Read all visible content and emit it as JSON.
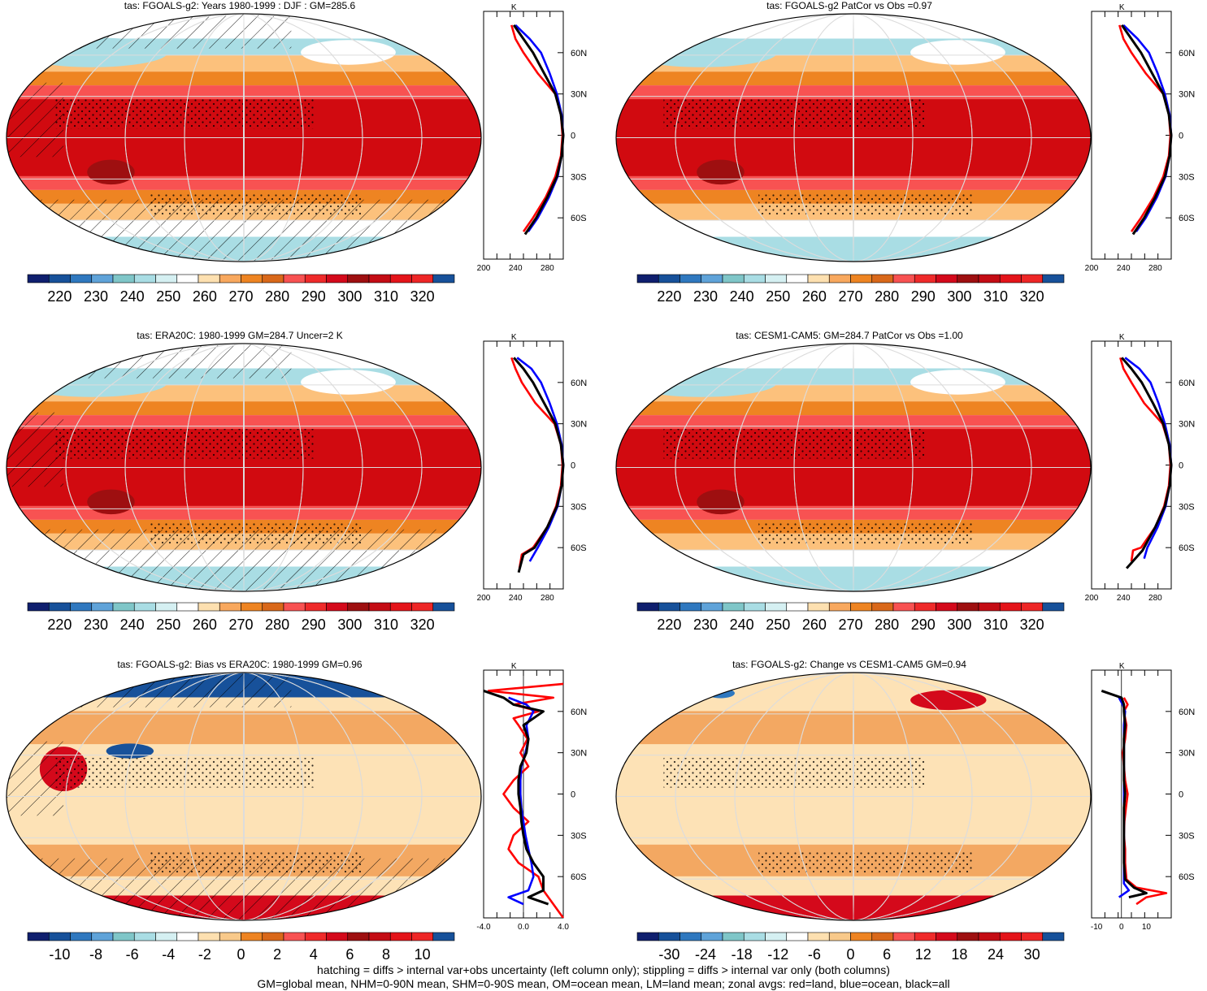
{
  "panels": [
    {
      "id": "fgoals",
      "title": "tas: FGOALS-g2: Years 1980-1999 : DJF : GM=285.6",
      "kind": "abs",
      "hatch": true,
      "scale": "abs"
    },
    {
      "id": "fgoals-patcor",
      "title": "tas: FGOALS-g2 PatCor vs Obs =0.97",
      "kind": "abs",
      "hatch": false,
      "scale": "abs"
    },
    {
      "id": "era20c",
      "title": "tas: ERA20C: 1980-1999 GM=284.7 Uncer=2 K",
      "kind": "abs",
      "hatch": true,
      "scale": "abs"
    },
    {
      "id": "cesm",
      "title": "tas: CESM1-CAM5: GM=284.7 PatCor vs Obs =1.00",
      "kind": "abs",
      "hatch": false,
      "scale": "abs"
    },
    {
      "id": "bias",
      "title": "tas: FGOALS-g2: Bias vs ERA20C: 1980-1999 GM=0.96",
      "kind": "bias",
      "hatch": true,
      "scale": "bias"
    },
    {
      "id": "change",
      "title": "tas: FGOALS-g2: Change vs CESM1-CAM5 GM=0.94",
      "kind": "change",
      "hatch": false,
      "scale": "change"
    }
  ],
  "colorbars": {
    "abs": {
      "labels": [
        "220",
        "230",
        "240",
        "250",
        "260",
        "270",
        "280",
        "290",
        "300",
        "310",
        "320"
      ],
      "colors": [
        "#0f1f6e",
        "#17519a",
        "#2f78bf",
        "#5fa3d9",
        "#7fc6c8",
        "#a9dde4",
        "#d5f0f2",
        "#ffffff",
        "#fde0b0",
        "#f8a85e",
        "#ee8422",
        "#d9681a",
        "#f85252",
        "#ef2a2a",
        "#d4091b",
        "#9e0f10",
        "#c40c14",
        "#e4141a",
        "#ee2626",
        "#17519a"
      ]
    },
    "bias": {
      "labels": [
        "-10",
        "-8",
        "-6",
        "-4",
        "-2",
        "0",
        "2",
        "4",
        "6",
        "8",
        "10"
      ],
      "colors": [
        "#0f1f6e",
        "#17519a",
        "#2f78bf",
        "#5fa3d9",
        "#7fc6c8",
        "#a9dde4",
        "#d5f0f2",
        "#ffffff",
        "#fde0b0",
        "#f8c98a",
        "#ee8422",
        "#d9681a",
        "#f85252",
        "#ef2a2a",
        "#d4091b",
        "#9e0f10",
        "#c40c14",
        "#e4141a",
        "#ee2626",
        "#17519a"
      ]
    },
    "change": {
      "labels": [
        "-30",
        "-24",
        "-18",
        "-12",
        "-6",
        "0",
        "6",
        "12",
        "18",
        "24",
        "30"
      ],
      "colors": [
        "#0f1f6e",
        "#17519a",
        "#2f78bf",
        "#5fa3d9",
        "#7fc6c8",
        "#a9dde4",
        "#d5f0f2",
        "#ffffff",
        "#fde0b0",
        "#f8c98a",
        "#ee8422",
        "#d9681a",
        "#f85252",
        "#ef2a2a",
        "#d4091b",
        "#9e0f10",
        "#c40c14",
        "#e4141a",
        "#ee2626",
        "#17519a"
      ]
    }
  },
  "map_colors": {
    "abs": {
      "trop": "#d10a10",
      "warm": "#ef2121",
      "mid": "#f85252",
      "cool": "#ee8422",
      "cold": "#fcc17c",
      "polar": "#ffffff",
      "ice": "#a9dde4",
      "deep": "#9e0f10"
    },
    "bias": {
      "base": "#fde2b6",
      "warm": "#f3a862",
      "hot": "#d4091b",
      "cold": "#17519a",
      "cool": "#a9dde4"
    },
    "change": {
      "base": "#fde2b6",
      "warm": "#f3a862",
      "hot": "#d4091b",
      "cold": "#2f78bf"
    }
  },
  "zonal_axes": {
    "abs": {
      "xticks": [
        "200",
        "240",
        "280"
      ],
      "xmin": 200,
      "xmax": 300
    },
    "bias": {
      "xticks": [
        "-4.0",
        "0.0",
        "4.0"
      ],
      "xmin": -4,
      "xmax": 4
    },
    "change": {
      "xticks": [
        "-10",
        "0",
        "10"
      ],
      "xmin": -12,
      "xmax": 20
    }
  },
  "zonal_units": "K",
  "lat_ticks": [
    "60N",
    "30N",
    "0",
    "30S",
    "60S"
  ],
  "chart_data": [
    {
      "type": "line",
      "panel": "fgoals",
      "xlabel": "K",
      "ylabel": "",
      "x_range": [
        200,
        300
      ],
      "y_range": [
        -90,
        90
      ],
      "series": [
        {
          "name": "land",
          "color": "#ff0000",
          "lat": [
            -70,
            -60,
            -45,
            -30,
            -15,
            0,
            15,
            30,
            45,
            60,
            70,
            80
          ],
          "values": [
            250,
            262,
            278,
            290,
            297,
            299,
            297,
            290,
            268,
            250,
            240,
            235
          ]
        },
        {
          "name": "ocean",
          "color": "#0000ff",
          "lat": [
            -70,
            -60,
            -45,
            -30,
            -15,
            0,
            15,
            30,
            45,
            60,
            70,
            80
          ],
          "values": [
            256,
            268,
            282,
            293,
            298,
            300,
            298,
            292,
            283,
            272,
            258,
            240
          ]
        },
        {
          "name": "all",
          "color": "#000000",
          "lat": [
            -72,
            -60,
            -45,
            -30,
            -15,
            0,
            15,
            30,
            45,
            60,
            70,
            80
          ],
          "values": [
            252,
            266,
            280,
            292,
            298,
            300,
            297,
            290,
            276,
            262,
            250,
            238
          ]
        }
      ]
    },
    {
      "type": "line",
      "panel": "fgoals-patcor",
      "xlabel": "K",
      "ylabel": "",
      "x_range": [
        200,
        300
      ],
      "y_range": [
        -90,
        90
      ],
      "series": [
        {
          "name": "land",
          "color": "#ff0000",
          "lat": [
            -70,
            -60,
            -45,
            -30,
            -15,
            0,
            15,
            30,
            45,
            60,
            70,
            80
          ],
          "values": [
            250,
            262,
            278,
            290,
            297,
            299,
            297,
            290,
            268,
            250,
            240,
            235
          ]
        },
        {
          "name": "ocean",
          "color": "#0000ff",
          "lat": [
            -70,
            -60,
            -45,
            -30,
            -15,
            0,
            15,
            30,
            45,
            60,
            70,
            80
          ],
          "values": [
            256,
            268,
            282,
            293,
            298,
            300,
            298,
            292,
            283,
            272,
            258,
            240
          ]
        },
        {
          "name": "all",
          "color": "#000000",
          "lat": [
            -72,
            -60,
            -45,
            -30,
            -15,
            0,
            15,
            30,
            45,
            60,
            70,
            80
          ],
          "values": [
            252,
            266,
            280,
            292,
            298,
            300,
            297,
            290,
            276,
            262,
            250,
            238
          ]
        }
      ]
    },
    {
      "type": "line",
      "panel": "era20c",
      "xlabel": "K",
      "ylabel": "",
      "x_range": [
        200,
        300
      ],
      "y_range": [
        -90,
        90
      ],
      "series": [
        {
          "name": "land",
          "color": "#ff0000",
          "lat": [
            -75,
            -65,
            -60,
            -45,
            -30,
            -15,
            0,
            15,
            30,
            45,
            60,
            70,
            78
          ],
          "values": [
            245,
            248,
            262,
            280,
            291,
            297,
            299,
            297,
            289,
            265,
            248,
            240,
            235
          ]
        },
        {
          "name": "ocean",
          "color": "#0000ff",
          "lat": [
            -70,
            -60,
            -45,
            -30,
            -15,
            0,
            15,
            30,
            45,
            60,
            70,
            78
          ],
          "values": [
            258,
            268,
            282,
            293,
            298,
            300,
            298,
            292,
            283,
            272,
            260,
            242
          ]
        },
        {
          "name": "all",
          "color": "#000000",
          "lat": [
            -78,
            -65,
            -60,
            -45,
            -30,
            -15,
            0,
            15,
            30,
            45,
            60,
            70,
            78
          ],
          "values": [
            244,
            250,
            264,
            280,
            292,
            298,
            300,
            297,
            290,
            276,
            262,
            250,
            238
          ]
        }
      ]
    },
    {
      "type": "line",
      "panel": "cesm",
      "xlabel": "K",
      "ylabel": "",
      "x_range": [
        200,
        300
      ],
      "y_range": [
        -90,
        90
      ],
      "series": [
        {
          "name": "land",
          "color": "#ff0000",
          "lat": [
            -70,
            -62,
            -60,
            -45,
            -30,
            -15,
            0,
            15,
            30,
            45,
            60,
            70,
            78
          ],
          "values": [
            250,
            252,
            262,
            280,
            291,
            297,
            299,
            297,
            289,
            266,
            250,
            240,
            236
          ]
        },
        {
          "name": "ocean",
          "color": "#0000ff",
          "lat": [
            -68,
            -60,
            -45,
            -30,
            -15,
            0,
            15,
            30,
            45,
            60,
            70,
            78
          ],
          "values": [
            266,
            270,
            283,
            293,
            298,
            300,
            298,
            292,
            284,
            274,
            260,
            242
          ]
        },
        {
          "name": "all",
          "color": "#000000",
          "lat": [
            -75,
            -62,
            -45,
            -30,
            -15,
            0,
            15,
            30,
            45,
            60,
            70,
            78
          ],
          "values": [
            244,
            264,
            280,
            292,
            298,
            300,
            297,
            290,
            277,
            263,
            250,
            238
          ]
        }
      ]
    },
    {
      "type": "line",
      "panel": "bias",
      "xlabel": "K",
      "ylabel": "",
      "x_range": [
        -4,
        4
      ],
      "y_range": [
        -90,
        90
      ],
      "series": [
        {
          "name": "land",
          "color": "#ff0000",
          "lat": [
            -90,
            -80,
            -70,
            -60,
            -50,
            -40,
            -30,
            -20,
            -10,
            0,
            10,
            20,
            30,
            40,
            50,
            55,
            60,
            65,
            70,
            75,
            80
          ],
          "values": [
            4,
            3,
            2,
            1.5,
            -0.5,
            -1.5,
            -1.0,
            0.5,
            -1.0,
            -2.0,
            -1.0,
            0.5,
            -0.3,
            0.4,
            -0.5,
            -1.0,
            1.5,
            -1.0,
            3.0,
            -3.5,
            4.0
          ]
        },
        {
          "name": "ocean",
          "color": "#0000ff",
          "lat": [
            -80,
            -75,
            -70,
            -60,
            -50,
            -40,
            -30,
            -20,
            -10,
            0,
            10,
            20,
            30,
            40,
            50,
            60,
            65,
            70
          ],
          "values": [
            0,
            -1.5,
            0.5,
            1.0,
            0.8,
            0.5,
            0.2,
            0.0,
            -0.2,
            -0.3,
            -0.3,
            -0.2,
            0.2,
            0.5,
            0.3,
            1.0,
            0.3,
            -1.5
          ]
        },
        {
          "name": "all",
          "color": "#000000",
          "lat": [
            -80,
            -75,
            -70,
            -60,
            -50,
            -40,
            -30,
            -20,
            -10,
            0,
            10,
            20,
            30,
            40,
            50,
            60,
            65,
            70,
            75
          ],
          "values": [
            2.5,
            0.5,
            2.0,
            2.0,
            1.0,
            0.3,
            0.0,
            -0.2,
            -0.3,
            -0.5,
            -0.5,
            -0.3,
            0.3,
            0.5,
            0.0,
            2.0,
            -1.0,
            -2.0,
            -4.0
          ]
        }
      ]
    },
    {
      "type": "line",
      "panel": "change",
      "xlabel": "K",
      "ylabel": "",
      "x_range": [
        -12,
        20
      ],
      "y_range": [
        -90,
        90
      ],
      "series": [
        {
          "name": "land",
          "color": "#ff0000",
          "lat": [
            -80,
            -75,
            -72,
            -68,
            -62,
            -50,
            -40,
            -30,
            -20,
            -10,
            0,
            10,
            20,
            30,
            40,
            50,
            60,
            65,
            70
          ],
          "values": [
            6,
            10,
            18,
            6,
            2,
            1.5,
            1.5,
            1.0,
            1.2,
            1.8,
            2.5,
            1.5,
            1.0,
            0.5,
            1.5,
            2.0,
            1.0,
            2.5,
            1.0
          ]
        },
        {
          "name": "ocean",
          "color": "#0000ff",
          "lat": [
            -75,
            -70,
            -65,
            -55,
            -40,
            -30,
            -20,
            -10,
            0,
            10,
            20,
            30,
            40,
            50,
            60,
            65,
            70
          ],
          "values": [
            -1,
            3,
            1,
            1,
            1,
            1,
            1,
            1,
            1,
            1,
            1,
            1,
            1,
            1,
            1.5,
            0.5,
            -1
          ]
        },
        {
          "name": "all",
          "color": "#000000",
          "lat": [
            -75,
            -72,
            -68,
            -62,
            -50,
            -40,
            -30,
            -20,
            -10,
            0,
            10,
            20,
            30,
            40,
            50,
            60,
            65,
            70,
            75
          ],
          "values": [
            3,
            10,
            5,
            1.5,
            1,
            1,
            1,
            1,
            1,
            1.5,
            1,
            1,
            1,
            1,
            1.5,
            1,
            1,
            0,
            -8
          ]
        }
      ]
    }
  ],
  "footer": {
    "line1": "hatching = diffs > internal var+obs uncertainty (left column only); stippling = diffs > internal var only (both columns)",
    "line2": "GM=global mean, NHM=0-90N mean, SHM=0-90S mean, OM=ocean mean, LM=land mean; zonal avgs: red=land, blue=ocean, black=all"
  }
}
